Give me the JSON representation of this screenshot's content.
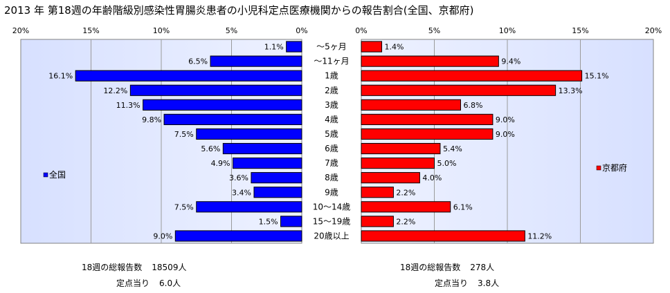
{
  "title": "2013 年 第18週の年齢階級別感染性胃腸炎患者の小児科定点医療機関からの報告割合(全国、京都府)",
  "chart_data": {
    "type": "bar",
    "orientation": "horizontal-butterfly",
    "categories": [
      "～5ヶ月",
      "～11ヶ月",
      "1歳",
      "2歳",
      "3歳",
      "4歳",
      "5歳",
      "6歳",
      "7歳",
      "8歳",
      "9歳",
      "10～14歳",
      "15～19歳",
      "20歳以上"
    ],
    "xlim": [
      0,
      20
    ],
    "ticks": [
      "0%",
      "5%",
      "10%",
      "15%",
      "20%"
    ],
    "grid": true,
    "series": [
      {
        "name": "全国",
        "color": "#0000ff",
        "side": "left",
        "legend_position": "left",
        "values": [
          1.1,
          6.5,
          16.1,
          12.2,
          11.3,
          9.8,
          7.5,
          5.6,
          4.9,
          3.6,
          3.4,
          7.5,
          1.5,
          9.0
        ],
        "labels": [
          "1.1%",
          "6.5%",
          "16.1%",
          "12.2%",
          "11.3%",
          "9.8%",
          "7.5%",
          "5.6%",
          "4.9%",
          "3.6%",
          "3.4%",
          "7.5%",
          "1.5%",
          "9.0%"
        ]
      },
      {
        "name": "京都府",
        "color": "#ff0000",
        "side": "right",
        "legend_position": "right",
        "values": [
          1.4,
          9.4,
          15.1,
          13.3,
          6.8,
          9.0,
          9.0,
          5.4,
          5.0,
          4.0,
          2.2,
          6.1,
          2.2,
          11.2
        ],
        "labels": [
          "1.4%",
          "9.4%",
          "15.1%",
          "13.3%",
          "6.8%",
          "9.0%",
          "9.0%",
          "5.4%",
          "5.0%",
          "4.0%",
          "2.2%",
          "6.1%",
          "2.2%",
          "11.2%"
        ]
      }
    ]
  },
  "summary": {
    "national": {
      "total_label": "18週の総報告数",
      "total_value": "18509人",
      "per_site_label": "定点当り",
      "per_site_value": "6.0人"
    },
    "kyoto": {
      "total_label": "18週の総報告数",
      "total_value": "278人",
      "per_site_label": "定点当り",
      "per_site_value": "3.8人"
    }
  }
}
